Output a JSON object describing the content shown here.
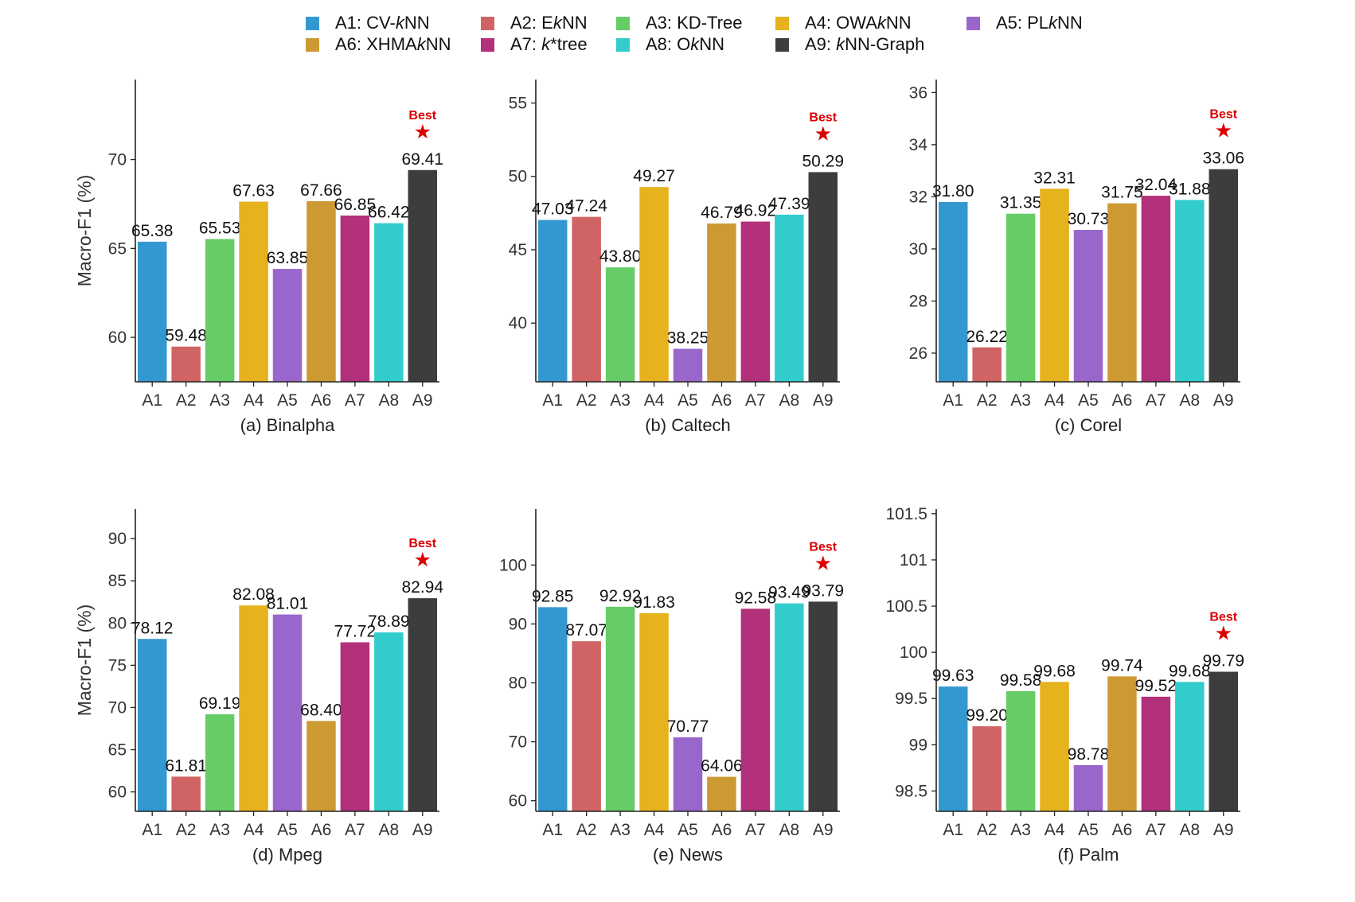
{
  "legend": [
    {
      "code": "A1",
      "pre": "A1: CV-",
      "ital": "k",
      "post": "NN",
      "color": "#3498D0"
    },
    {
      "code": "A2",
      "pre": "A2: E",
      "ital": "k",
      "post": "NN",
      "color": "#D06464"
    },
    {
      "code": "A3",
      "pre": "A3: KD-Tree",
      "ital": "",
      "post": "",
      "color": "#66CC66"
    },
    {
      "code": "A4",
      "pre": "A4: OWA",
      "ital": "k",
      "post": "NN",
      "color": "#E6B21D"
    },
    {
      "code": "A5",
      "pre": "A5: PL",
      "ital": "k",
      "post": "NN",
      "color": "#9966CC"
    },
    {
      "code": "A6",
      "pre": "A6: XHMA",
      "ital": "k",
      "post": "NN",
      "color": "#CC9933"
    },
    {
      "code": "A7",
      "pre": "A7: ",
      "ital": "k",
      "post": "*tree",
      "color": "#B3307A"
    },
    {
      "code": "A8",
      "pre": "A8: O",
      "ital": "k",
      "post": "NN",
      "color": "#33CCCC"
    },
    {
      "code": "A9",
      "pre": "A9: ",
      "ital": "k",
      "post": "NN-Graph",
      "color": "#3D3D3D"
    }
  ],
  "best_label": "Best",
  "best_color": "#DD0000",
  "best_marker": "★",
  "chart_data": [
    {
      "type": "bar",
      "title": "(a) Binalpha",
      "ylabel": "Macro-F1 (%)",
      "categories": [
        "A1",
        "A2",
        "A3",
        "A4",
        "A5",
        "A6",
        "A7",
        "A8",
        "A9"
      ],
      "values": [
        65.38,
        59.48,
        65.53,
        67.63,
        63.85,
        67.66,
        66.85,
        66.42,
        69.41
      ],
      "labels": [
        "65.38",
        "59.48",
        "65.53",
        "67.63",
        "63.85",
        "67.66",
        "66.85",
        "66.42",
        "69.41"
      ],
      "ylim": [
        57.5,
        74.5
      ],
      "yticks": [
        60,
        65,
        70
      ],
      "ytick_labels": [
        "60",
        "65",
        "70"
      ],
      "best_index": 8
    },
    {
      "type": "bar",
      "title": "(b) Caltech",
      "ylabel": "",
      "categories": [
        "A1",
        "A2",
        "A3",
        "A4",
        "A5",
        "A6",
        "A7",
        "A8",
        "A9"
      ],
      "values": [
        47.03,
        47.24,
        43.8,
        49.27,
        38.25,
        46.79,
        46.92,
        47.39,
        50.29
      ],
      "labels": [
        "47.03",
        "47.24",
        "43.80",
        "49.27",
        "38.25",
        "46.79",
        "46.92",
        "47.39",
        "50.29"
      ],
      "ylim": [
        36.0,
        56.6
      ],
      "yticks": [
        40,
        45,
        50,
        55
      ],
      "ytick_labels": [
        "40",
        "45",
        "50",
        "55"
      ],
      "best_index": 8
    },
    {
      "type": "bar",
      "title": "(c) Corel",
      "ylabel": "",
      "categories": [
        "A1",
        "A2",
        "A3",
        "A4",
        "A5",
        "A6",
        "A7",
        "A8",
        "A9"
      ],
      "values": [
        31.8,
        26.22,
        31.35,
        32.31,
        30.73,
        31.75,
        32.04,
        31.88,
        33.06
      ],
      "labels": [
        "31.80",
        "26.22",
        "31.35",
        "32.31",
        "30.73",
        "31.75",
        "32.04",
        "31.88",
        "33.06"
      ],
      "ylim": [
        24.9,
        36.5
      ],
      "yticks": [
        26,
        28,
        30,
        32,
        34,
        36
      ],
      "ytick_labels": [
        "26",
        "28",
        "30",
        "32",
        "34",
        "36"
      ],
      "best_index": 8
    },
    {
      "type": "bar",
      "title": "(d) Mpeg",
      "ylabel": "Macro-F1 (%)",
      "categories": [
        "A1",
        "A2",
        "A3",
        "A4",
        "A5",
        "A6",
        "A7",
        "A8",
        "A9"
      ],
      "values": [
        78.12,
        61.81,
        69.19,
        82.08,
        81.01,
        68.4,
        77.72,
        78.89,
        82.94
      ],
      "labels": [
        "78.12",
        "61.81",
        "69.19",
        "82.08",
        "81.01",
        "68.40",
        "77.72",
        "78.89",
        "82.94"
      ],
      "ylim": [
        57.7,
        93.5
      ],
      "yticks": [
        60,
        65,
        70,
        75,
        80,
        85,
        90
      ],
      "ytick_labels": [
        "60",
        "65",
        "70",
        "75",
        "80",
        "85",
        "90"
      ],
      "best_index": 8
    },
    {
      "type": "bar",
      "title": "(e) News",
      "ylabel": "",
      "categories": [
        "A1",
        "A2",
        "A3",
        "A4",
        "A5",
        "A6",
        "A7",
        "A8",
        "A9"
      ],
      "values": [
        92.85,
        87.07,
        92.92,
        91.83,
        70.77,
        64.06,
        92.58,
        93.49,
        93.79
      ],
      "labels": [
        "92.85",
        "87.07",
        "92.92",
        "91.83",
        "70.77",
        "64.06",
        "92.58",
        "93.49",
        "93.79"
      ],
      "ylim": [
        58.2,
        109.5
      ],
      "yticks": [
        60,
        70,
        80,
        90,
        100
      ],
      "ytick_labels": [
        "60",
        "70",
        "80",
        "90",
        "100"
      ],
      "best_index": 8
    },
    {
      "type": "bar",
      "title": "(f) Palm",
      "ylabel": "",
      "categories": [
        "A1",
        "A2",
        "A3",
        "A4",
        "A5",
        "A6",
        "A7",
        "A8",
        "A9"
      ],
      "values": [
        99.63,
        99.2,
        99.58,
        99.68,
        98.78,
        99.74,
        99.52,
        99.68,
        99.79
      ],
      "labels": [
        "99.63",
        "99.20",
        "99.58",
        "99.68",
        "98.78",
        "99.74",
        "99.52",
        "99.68",
        "99.79"
      ],
      "ylim": [
        98.28,
        101.55
      ],
      "yticks": [
        98.5,
        99,
        99.5,
        100,
        100.5,
        101,
        101.5
      ],
      "ytick_labels": [
        "98.5",
        "99",
        "99.5",
        "100",
        "100.5",
        "101",
        "101.5"
      ],
      "best_index": 8
    }
  ]
}
